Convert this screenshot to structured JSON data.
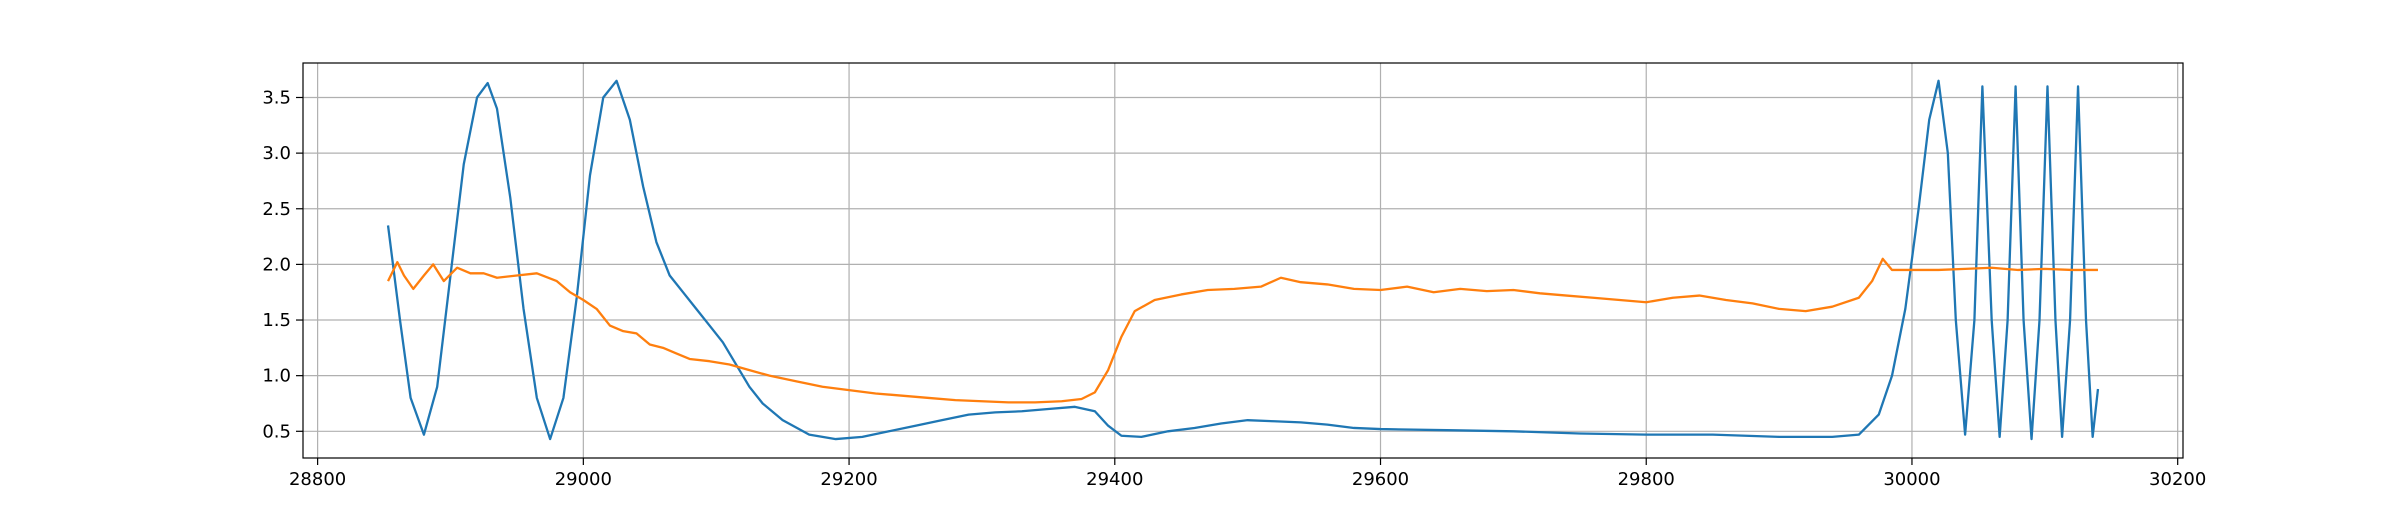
{
  "chart_data": {
    "type": "line",
    "xlim": [
      28789,
      30204
    ],
    "ylim": [
      0.26,
      3.81
    ],
    "xticks": [
      28800,
      29000,
      29200,
      29400,
      29600,
      29800,
      30000,
      30200
    ],
    "yticks": [
      0.5,
      {
        "value": 1.0,
        "label": "1.0"
      },
      1.5,
      {
        "value": 2.0,
        "label": "2.0"
      },
      2.5,
      {
        "value": 3.0,
        "label": "3.0"
      },
      3.5
    ],
    "grid": true,
    "series": [
      {
        "color": "#1f77b4",
        "x": [
          28853,
          28862,
          28870,
          28880,
          28890,
          28900,
          28910,
          28920,
          28928,
          28935,
          28945,
          28955,
          28965,
          28975,
          28985,
          28995,
          29005,
          29015,
          29025,
          29035,
          29045,
          29055,
          29065,
          29075,
          29085,
          29095,
          29105,
          29115,
          29125,
          29135,
          29150,
          29170,
          29190,
          29210,
          29230,
          29250,
          29270,
          29290,
          29310,
          29330,
          29350,
          29370,
          29385,
          29395,
          29405,
          29420,
          29440,
          29460,
          29480,
          29500,
          29520,
          29540,
          29560,
          29580,
          29600,
          29650,
          29700,
          29750,
          29800,
          29850,
          29900,
          29940,
          29960,
          29975,
          29985,
          29995,
          30005,
          30013,
          30020,
          30027,
          30033,
          30040,
          30047,
          30053,
          30060,
          30066,
          30072,
          30078,
          30084,
          30090,
          30096,
          30102,
          30108,
          30113,
          30119,
          30125,
          30131,
          30136,
          30140
        ],
        "values": [
          2.35,
          1.5,
          0.8,
          0.47,
          0.9,
          1.9,
          2.9,
          3.5,
          3.63,
          3.4,
          2.6,
          1.6,
          0.8,
          0.43,
          0.8,
          1.7,
          2.8,
          3.5,
          3.65,
          3.3,
          2.7,
          2.2,
          1.9,
          1.75,
          1.6,
          1.45,
          1.3,
          1.1,
          0.9,
          0.75,
          0.6,
          0.47,
          0.43,
          0.45,
          0.5,
          0.55,
          0.6,
          0.65,
          0.67,
          0.68,
          0.7,
          0.72,
          0.68,
          0.55,
          0.46,
          0.45,
          0.5,
          0.53,
          0.57,
          0.6,
          0.59,
          0.58,
          0.56,
          0.53,
          0.52,
          0.51,
          0.5,
          0.48,
          0.47,
          0.47,
          0.45,
          0.45,
          0.47,
          0.65,
          1.0,
          1.6,
          2.5,
          3.3,
          3.65,
          3.0,
          1.5,
          0.47,
          1.5,
          3.6,
          1.5,
          0.45,
          1.5,
          3.6,
          1.5,
          0.43,
          1.5,
          3.6,
          1.5,
          0.45,
          1.5,
          3.6,
          1.5,
          0.45,
          0.88
        ]
      },
      {
        "color": "#ff7f0e",
        "x": [
          28853,
          28860,
          28865,
          28872,
          28880,
          28887,
          28895,
          28905,
          28915,
          28925,
          28935,
          28950,
          28965,
          28980,
          28990,
          29000,
          29010,
          29020,
          29030,
          29040,
          29050,
          29060,
          29070,
          29080,
          29095,
          29110,
          29125,
          29140,
          29160,
          29180,
          29200,
          29220,
          29240,
          29260,
          29280,
          29300,
          29320,
          29340,
          29360,
          29375,
          29385,
          29395,
          29405,
          29415,
          29430,
          29450,
          29470,
          29490,
          29510,
          29525,
          29540,
          29560,
          29580,
          29600,
          29620,
          29640,
          29660,
          29680,
          29700,
          29720,
          29740,
          29760,
          29780,
          29800,
          29820,
          29840,
          29860,
          29880,
          29900,
          29920,
          29940,
          29960,
          29970,
          29978,
          29985,
          30000,
          30020,
          30040,
          30060,
          30080,
          30100,
          30120,
          30140
        ],
        "values": [
          1.85,
          2.02,
          1.9,
          1.78,
          1.9,
          2.0,
          1.85,
          1.97,
          1.92,
          1.92,
          1.88,
          1.9,
          1.92,
          1.85,
          1.75,
          1.68,
          1.6,
          1.45,
          1.4,
          1.38,
          1.28,
          1.25,
          1.2,
          1.15,
          1.13,
          1.1,
          1.05,
          1.0,
          0.95,
          0.9,
          0.87,
          0.84,
          0.82,
          0.8,
          0.78,
          0.77,
          0.76,
          0.76,
          0.77,
          0.79,
          0.85,
          1.05,
          1.35,
          1.58,
          1.68,
          1.73,
          1.77,
          1.78,
          1.8,
          1.88,
          1.84,
          1.82,
          1.78,
          1.77,
          1.8,
          1.75,
          1.78,
          1.76,
          1.77,
          1.74,
          1.72,
          1.7,
          1.68,
          1.66,
          1.7,
          1.72,
          1.68,
          1.65,
          1.6,
          1.58,
          1.62,
          1.7,
          1.85,
          2.05,
          1.95,
          1.95,
          1.95,
          1.96,
          1.97,
          1.95,
          1.96,
          1.95,
          1.95
        ]
      }
    ]
  }
}
